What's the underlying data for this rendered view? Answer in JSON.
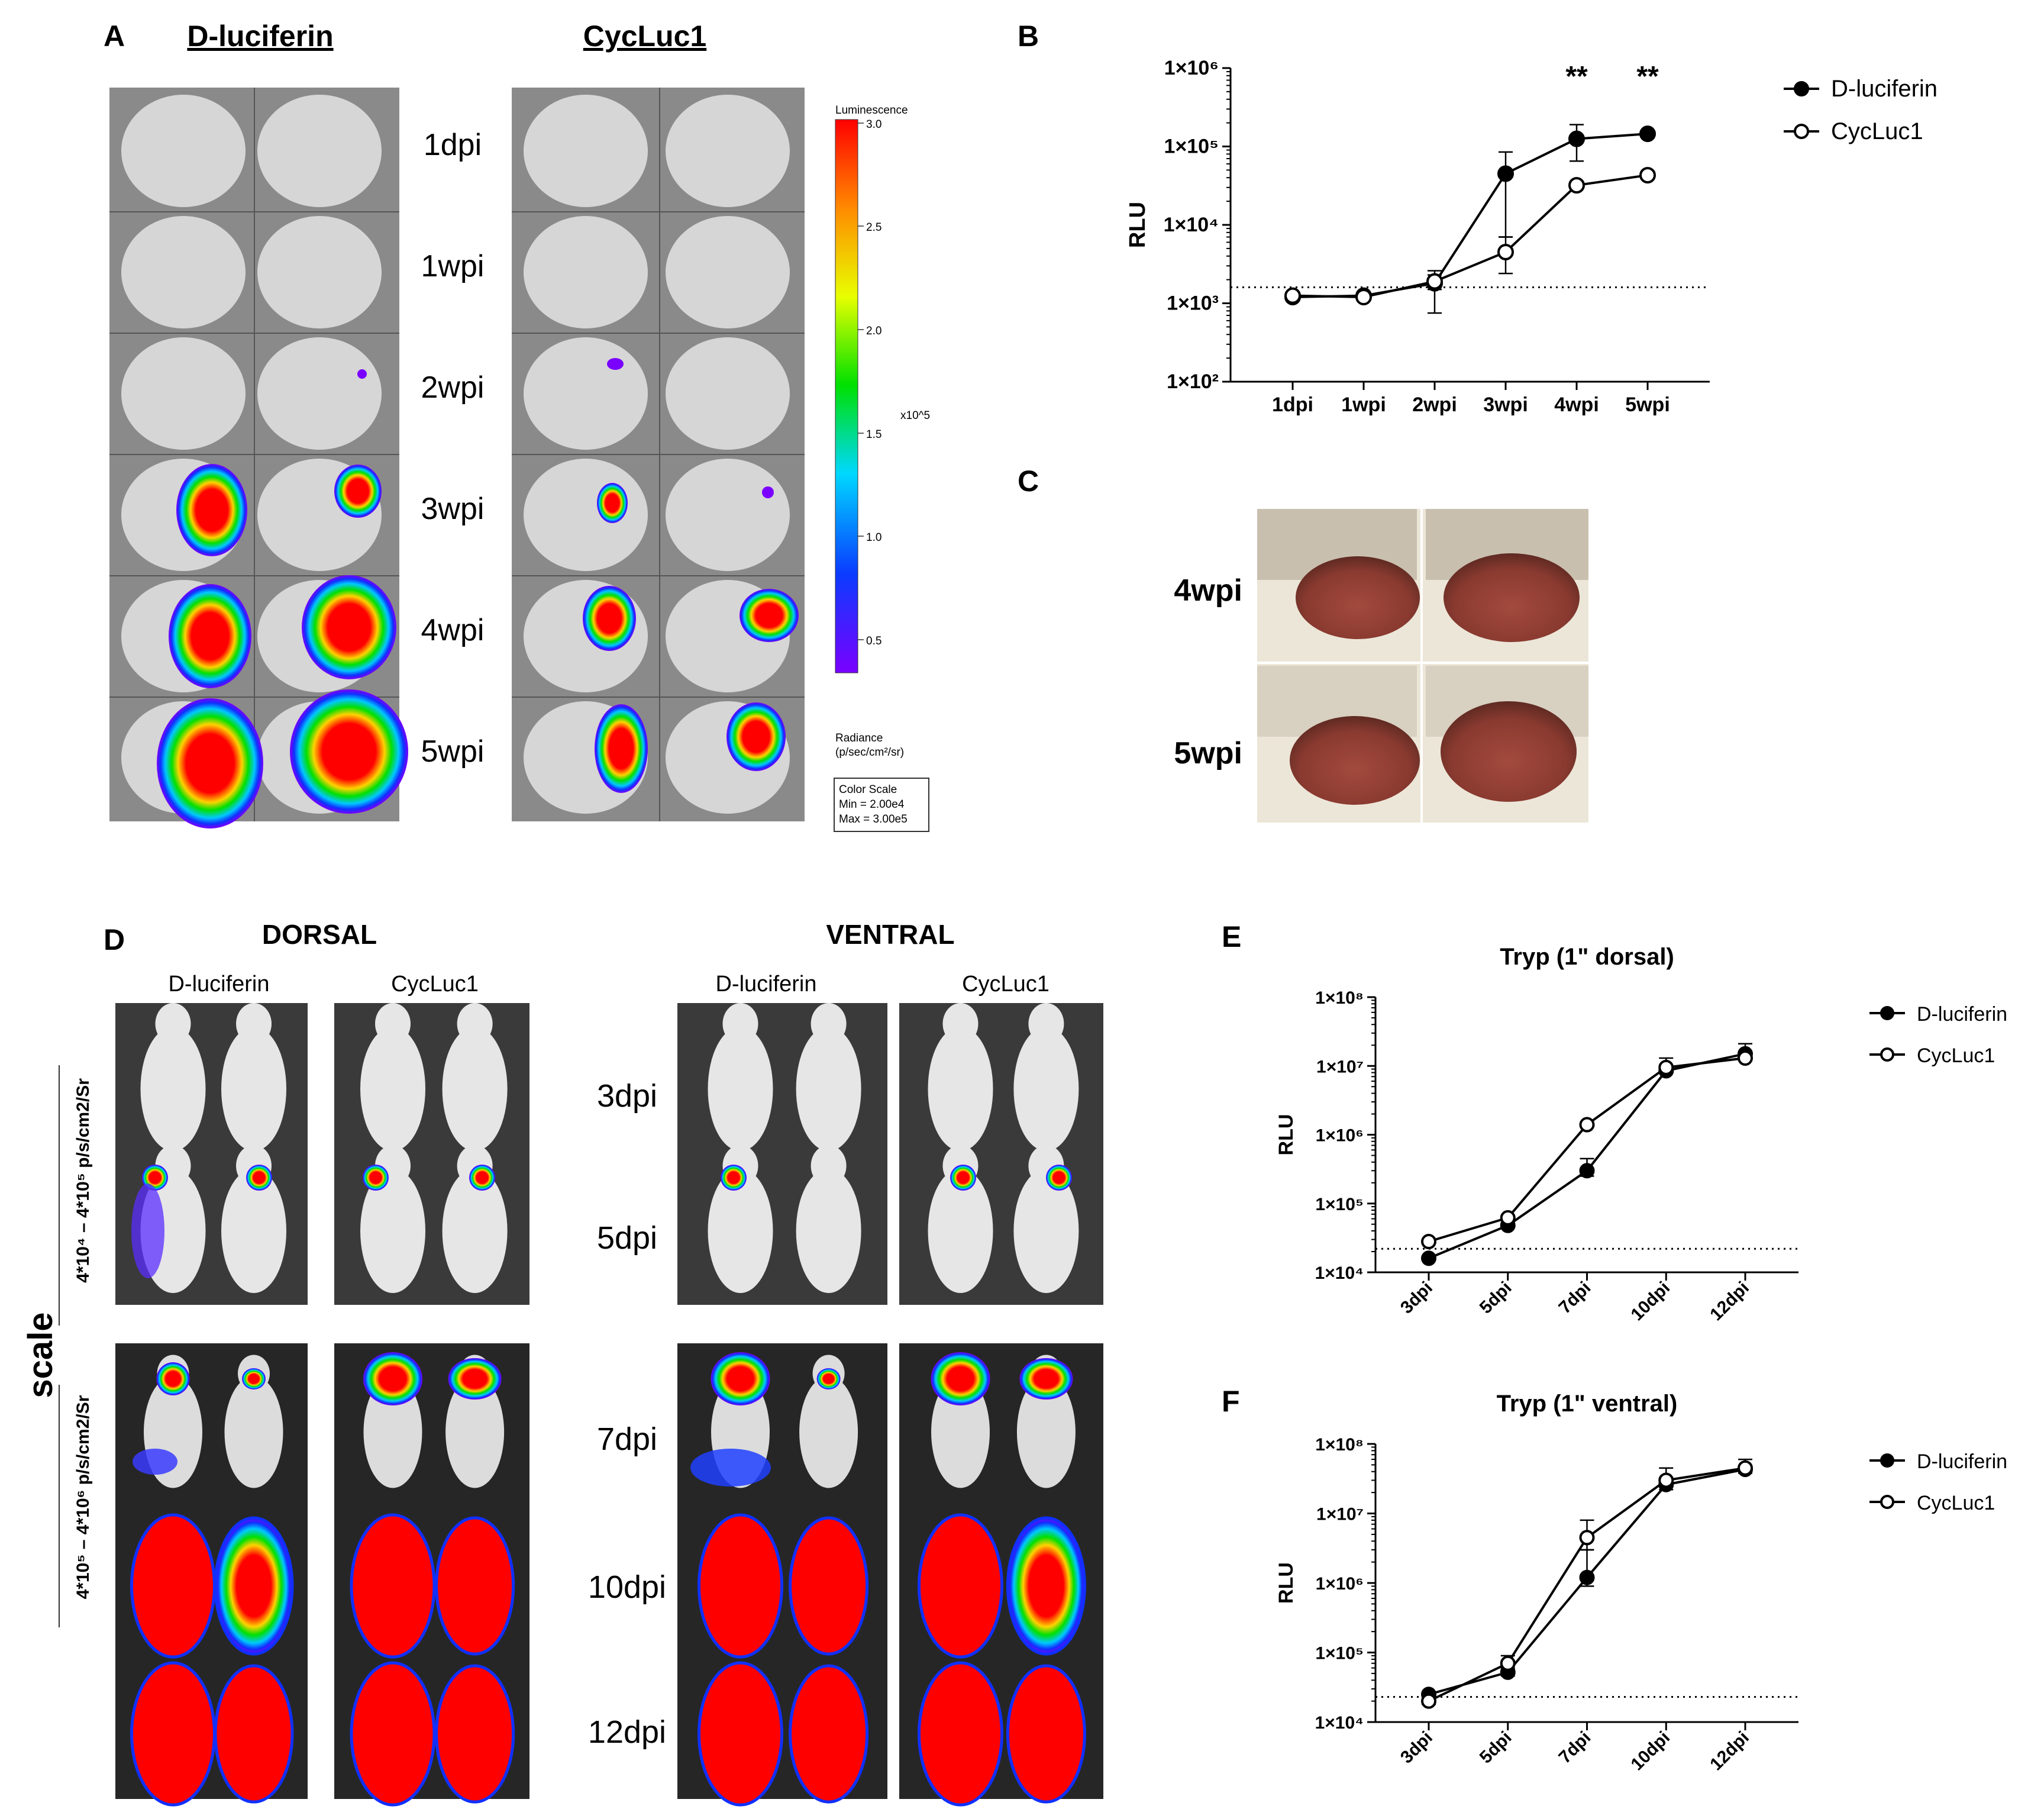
{
  "panel_labels": {
    "A": "A",
    "B": "B",
    "C": "C",
    "D": "D",
    "E": "E",
    "F": "F"
  },
  "panel_A": {
    "col_titles": [
      "D-luciferin",
      "CycLuc1"
    ],
    "row_labels": [
      "1dpi",
      "1wpi",
      "2wpi",
      "3wpi",
      "4wpi",
      "5wpi"
    ],
    "colorbar": {
      "title": "Luminescence",
      "ticks": [
        "3.0",
        "2.5",
        "2.0",
        "1.5",
        "1.0",
        "0.5"
      ],
      "exponent": "x10^5",
      "unit_line1": "Radiance",
      "unit_line2": "(p/sec/cm²/sr)",
      "scale_box": [
        "Color Scale",
        "Min = 2.00e4",
        "Max = 3.00e5"
      ]
    }
  },
  "panel_C": {
    "row_labels": [
      "4wpi",
      "5wpi"
    ]
  },
  "panel_D": {
    "views": [
      "DORSAL",
      "VENTRAL"
    ],
    "substrates": [
      "D-luciferin",
      "CycLuc1"
    ],
    "row_labels": [
      "3dpi",
      "5dpi",
      "7dpi",
      "10dpi",
      "12dpi"
    ],
    "scale_title": "scale",
    "scale_ranges": [
      "4*10⁴ – 4*10⁵ p/s/cm2/Sr",
      "4*10⁵ – 4*10⁶ p/s/cm2/Sr"
    ]
  },
  "chart_data": [
    {
      "id": "B",
      "type": "line",
      "title": "",
      "xlabel": "",
      "ylabel": "RLU",
      "yscale": "log",
      "ylim": [
        100,
        1000000
      ],
      "yticks": [
        "1×10²",
        "1×10³",
        "1×10⁴",
        "1×10⁵",
        "1×10⁶"
      ],
      "categories": [
        "1dpi",
        "1wpi",
        "2wpi",
        "3wpi",
        "4wpi",
        "5wpi"
      ],
      "threshold": 1600,
      "significance": [
        {
          "category": "4wpi",
          "label": "**"
        },
        {
          "category": "5wpi",
          "label": "**"
        }
      ],
      "series": [
        {
          "name": "D-luciferin",
          "marker": "filled",
          "values": [
            1200,
            1250,
            1800,
            45000,
            125000,
            145000
          ],
          "err_hi": [
            1350,
            1350,
            2600,
            85000,
            190000,
            150000
          ],
          "err_lo": [
            1100,
            1150,
            1500,
            7000,
            65000,
            140000
          ]
        },
        {
          "name": "CycLuc1",
          "marker": "open",
          "values": [
            1250,
            1200,
            1900,
            4500,
            32000,
            43000
          ],
          "err_hi": [
            1350,
            1300,
            2300,
            7000,
            33000,
            48000
          ],
          "err_lo": [
            1150,
            1100,
            750,
            2400,
            31000,
            39000
          ]
        }
      ],
      "legend": [
        "D-luciferin",
        "CycLuc1"
      ]
    },
    {
      "id": "E",
      "type": "line",
      "title": "Tryp (1\" dorsal)",
      "ylabel": "RLU",
      "yscale": "log",
      "ylim": [
        10000,
        100000000
      ],
      "yticks": [
        "1×10⁴",
        "1×10⁵",
        "1×10⁶",
        "1×10⁷",
        "1×10⁸"
      ],
      "categories": [
        "3dpi",
        "5dpi",
        "7dpi",
        "10dpi",
        "12dpi"
      ],
      "threshold": 22000,
      "series": [
        {
          "name": "D-luciferin",
          "marker": "filled",
          "values": [
            16000,
            48000,
            300000,
            8500000,
            15000000
          ],
          "err_hi": [
            17000,
            52000,
            450000,
            10000000,
            21000000
          ],
          "err_lo": [
            15000,
            45000,
            250000,
            8000000,
            13000000
          ]
        },
        {
          "name": "CycLuc1",
          "marker": "open",
          "values": [
            28000,
            62000,
            1400000,
            9500000,
            13000000
          ],
          "err_hi": [
            30000,
            67000,
            1500000,
            13000000,
            15000000
          ],
          "err_lo": [
            26000,
            58000,
            1300000,
            8500000,
            12000000
          ]
        }
      ],
      "legend": [
        "D-luciferin",
        "CycLuc1"
      ]
    },
    {
      "id": "F",
      "type": "line",
      "title": "Tryp (1\" ventral)",
      "ylabel": "RLU",
      "yscale": "log",
      "ylim": [
        10000,
        100000000
      ],
      "yticks": [
        "1×10⁴",
        "1×10⁵",
        "1×10⁶",
        "1×10⁷",
        "1×10⁸"
      ],
      "categories": [
        "3dpi",
        "5dpi",
        "7dpi",
        "10dpi",
        "12dpi"
      ],
      "threshold": 23000,
      "series": [
        {
          "name": "D-luciferin",
          "marker": "filled",
          "values": [
            25000,
            52000,
            1200000,
            26000000,
            43000000
          ],
          "err_hi": [
            27000,
            60000,
            3000000,
            30000000,
            60000000
          ],
          "err_lo": [
            23000,
            46000,
            900000,
            22000000,
            38000000
          ]
        },
        {
          "name": "CycLuc1",
          "marker": "open",
          "values": [
            20000,
            70000,
            4500000,
            30000000,
            45000000
          ],
          "err_hi": [
            22000,
            90000,
            8000000,
            45000000,
            48000000
          ],
          "err_lo": [
            18000,
            55000,
            3000000,
            25000000,
            42000000
          ]
        }
      ],
      "legend": [
        "D-luciferin",
        "CycLuc1"
      ]
    }
  ]
}
